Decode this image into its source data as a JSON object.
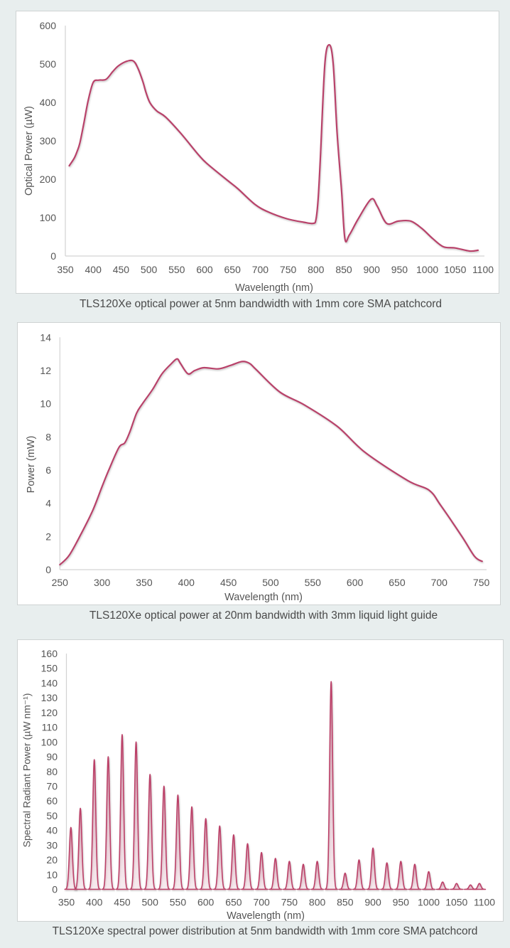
{
  "theme": {
    "background": "#e8eeee",
    "panel_background": "#ffffff",
    "series_color": "#b8436a",
    "text_color": "#555555"
  },
  "chart_data": [
    {
      "type": "line",
      "series_kind": "continuous",
      "title": "",
      "caption": "TLS120Xe optical power at 5nm bandwidth with 1mm core SMA patchcord",
      "xlabel": "Wavelength (nm)",
      "ylabel": "Optical Power (µW)",
      "xlim": [
        350,
        1100
      ],
      "ylim": [
        0,
        600
      ],
      "xticks": [
        350,
        400,
        450,
        500,
        550,
        600,
        650,
        700,
        750,
        800,
        850,
        900,
        950,
        1000,
        1050,
        1100
      ],
      "yticks": [
        0,
        100,
        200,
        300,
        400,
        500,
        600
      ],
      "grid": false,
      "legend": "none",
      "series": [
        {
          "name": "Optical power (µW)",
          "x": [
            357,
            366,
            371,
            376,
            383,
            391,
            400,
            410,
            423,
            435,
            445,
            460,
            472,
            480,
            489,
            495,
            502,
            514,
            530,
            557,
            590,
            605,
            642,
            660,
            690,
            714,
            748,
            778,
            795,
            800,
            804,
            808,
            816,
            824,
            831,
            838,
            846,
            852,
            860,
            876,
            899,
            910,
            927,
            948,
            970,
            990,
            1010,
            1029,
            1050,
            1076,
            1091
          ],
          "y": [
            235,
            255,
            272,
            294,
            344,
            405,
            452,
            458,
            460,
            480,
            495,
            507,
            508,
            490,
            455,
            425,
            399,
            378,
            362,
            320,
            262,
            240,
            196,
            175,
            135,
            115,
            97,
            88,
            85,
            95,
            150,
            257,
            500,
            550,
            500,
            320,
            170,
            45,
            55,
            97,
            148,
            130,
            85,
            91,
            91,
            72,
            45,
            24,
            21,
            13,
            15
          ]
        }
      ]
    },
    {
      "type": "line",
      "series_kind": "continuous",
      "title": "",
      "caption": "TLS120Xe optical power at 20nm bandwidth with 3mm liquid light guide",
      "xlabel": "Wavelength (nm)",
      "ylabel": "Power (mW)",
      "xlim": [
        250,
        750
      ],
      "ylim": [
        0,
        14
      ],
      "xticks": [
        250,
        300,
        350,
        400,
        450,
        500,
        550,
        600,
        650,
        700,
        750
      ],
      "yticks": [
        0,
        2,
        4,
        6,
        8,
        10,
        12,
        14
      ],
      "grid": false,
      "legend": "none",
      "series": [
        {
          "name": "Power (mW)",
          "x": [
            250,
            261,
            275,
            289,
            300,
            308,
            320,
            327,
            333,
            341,
            348,
            360,
            371,
            382,
            389,
            393,
            402,
            410,
            421,
            438,
            452,
            466,
            475,
            483,
            511,
            540,
            579,
            612,
            663,
            688,
            702,
            727,
            742,
            751
          ],
          "y": [
            0.3,
            0.86,
            2.14,
            3.57,
            5.0,
            6.0,
            7.36,
            7.64,
            8.3,
            9.43,
            10.0,
            10.86,
            11.79,
            12.4,
            12.7,
            12.43,
            11.8,
            12.0,
            12.17,
            12.1,
            12.3,
            12.54,
            12.43,
            12.05,
            10.7,
            9.93,
            8.64,
            7.07,
            5.36,
            4.79,
            3.86,
            2.0,
            0.8,
            0.5
          ]
        }
      ]
    },
    {
      "type": "line",
      "series_kind": "peaks",
      "title": "",
      "caption": "TLS120Xe spectral power distribution at 5nm bandwidth with 1mm core SMA patchcord",
      "xlabel": "Wavelength (nm)",
      "ylabel": "Spectral Radiant Power (µW nm⁻¹)",
      "xlim": [
        350,
        1100
      ],
      "ylim": [
        0,
        160
      ],
      "xticks": [
        350,
        400,
        450,
        500,
        550,
        600,
        650,
        700,
        750,
        800,
        850,
        900,
        950,
        1000,
        1050,
        1100
      ],
      "yticks": [
        0,
        10,
        20,
        30,
        40,
        50,
        60,
        70,
        80,
        90,
        100,
        110,
        120,
        130,
        140,
        150,
        160
      ],
      "grid": false,
      "legend": "none",
      "series": [
        {
          "name": "Spectral radiant power peaks (µW nm⁻¹)",
          "x": [
            358,
            375,
            400,
            425,
            450,
            475,
            500,
            525,
            550,
            575,
            600,
            625,
            650,
            675,
            700,
            725,
            750,
            775,
            800,
            825,
            850,
            875,
            900,
            925,
            950,
            975,
            1000,
            1025,
            1050,
            1075,
            1091
          ],
          "y": [
            42,
            55,
            88,
            90,
            105,
            100,
            78,
            70,
            64,
            56,
            48,
            43,
            37,
            31,
            25,
            21,
            19,
            17,
            19,
            141,
            11,
            20,
            28,
            18,
            19,
            17,
            12,
            5,
            4,
            3,
            4
          ]
        }
      ]
    }
  ]
}
